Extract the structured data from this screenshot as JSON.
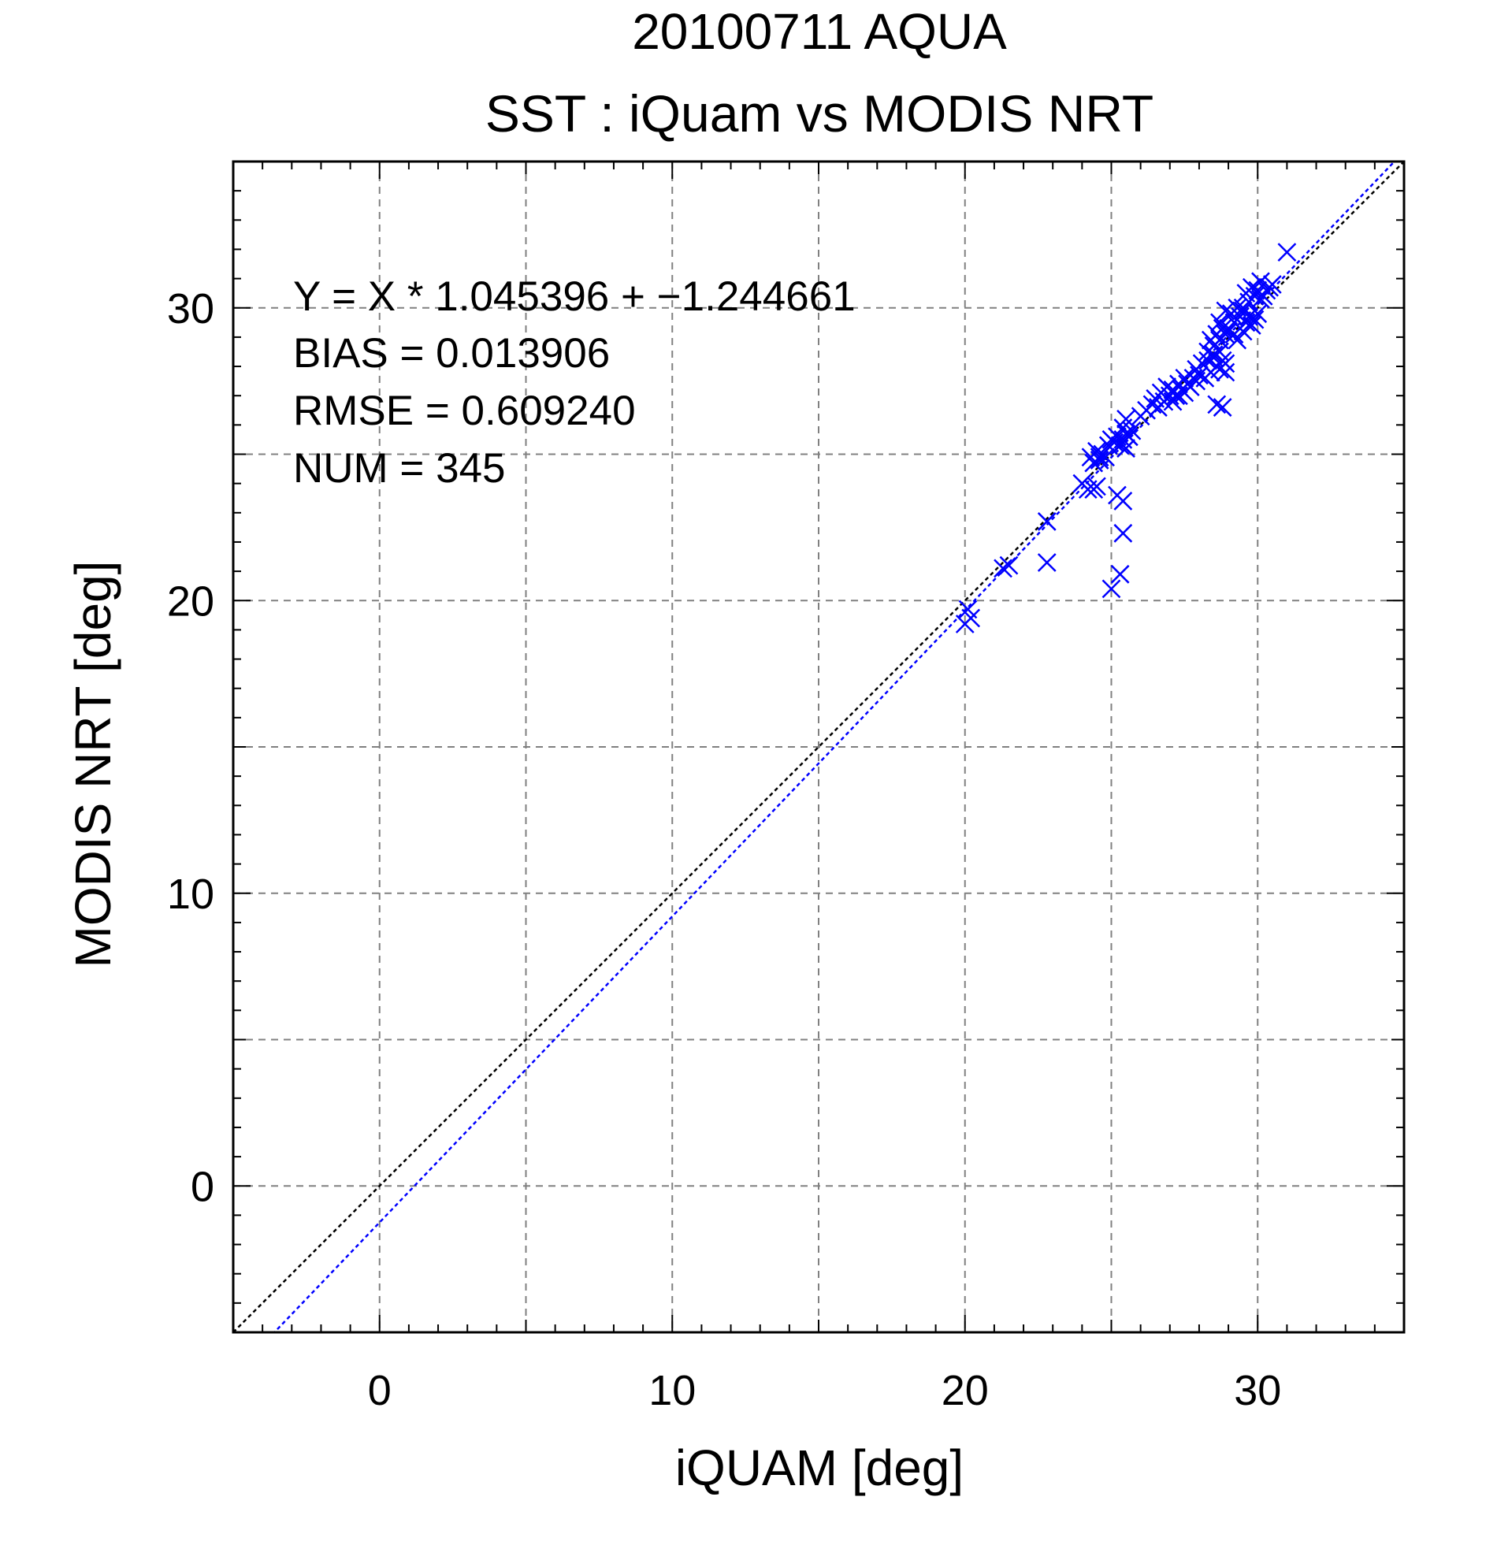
{
  "chart_data": {
    "type": "scatter",
    "header": "20100711 AQUA",
    "title": "SST : iQuam vs MODIS NRT",
    "xlabel": "iQUAM [deg]",
    "ylabel": "MODIS NRT [deg]",
    "xlim": [
      -5,
      35
    ],
    "ylim": [
      -5,
      35
    ],
    "xticks": [
      "0",
      "10",
      "20",
      "30"
    ],
    "yticks": [
      "0",
      "10",
      "20",
      "30"
    ],
    "grid": true,
    "colors": {
      "header": "#8a8a8a",
      "points": "#0000ff",
      "fit_line": "#0000ff",
      "identity_line": "#000000",
      "grid": "#808080"
    },
    "annotations": [
      "Y = X * 1.045396 + −1.244661",
      "BIAS = 0.013906",
      "RMSE = 0.609240",
      "NUM = 345"
    ],
    "fit": {
      "slope": 1.045396,
      "intercept": -1.244661
    },
    "identity": {
      "slope": 1,
      "intercept": 0
    },
    "series": [
      {
        "marker": "x",
        "x": [
          20.0,
          20.1,
          20.2,
          21.3,
          21.5,
          22.8,
          22.8,
          24.0,
          24.2,
          24.4,
          24.5,
          24.3,
          24.5,
          24.6,
          24.7,
          24.8,
          24.4,
          24.6,
          24.9,
          25.0,
          25.1,
          25.2,
          25.3,
          25.4,
          25.5,
          25.6,
          25.2,
          25.4,
          25.0,
          25.3,
          25.4,
          25.5,
          25.6,
          25.7,
          25.4,
          25.5,
          26.0,
          26.2,
          26.4,
          26.6,
          26.8,
          27.0,
          26.5,
          26.7,
          26.9,
          27.1,
          27.3,
          27.5,
          27.2,
          27.4,
          27.6,
          27.8,
          27.1,
          27.3,
          27.5,
          27.7,
          27.9,
          28.0,
          27.9,
          28.1,
          28.3,
          28.5,
          28.2,
          28.4,
          28.6,
          28.8,
          28.3,
          28.5,
          28.7,
          28.9,
          28.4,
          28.6,
          28.8,
          29.0,
          28.5,
          28.7,
          28.9,
          28.6,
          28.8,
          28.7,
          28.9,
          29.0,
          29.2,
          29.4,
          29.1,
          29.3,
          29.5,
          29.7,
          29.2,
          29.4,
          29.6,
          29.8,
          29.5,
          29.7,
          29.9,
          30.1,
          29.6,
          29.8,
          30.0,
          30.2,
          30.3,
          30.5,
          30.1,
          30.4,
          29.9,
          30.0,
          29.3,
          29.5,
          31.0,
          28.7,
          28.9
        ],
        "y": [
          19.2,
          19.7,
          19.4,
          21.1,
          21.2,
          21.3,
          22.7,
          24.0,
          23.8,
          23.8,
          23.9,
          24.9,
          25.1,
          24.8,
          25.0,
          24.9,
          24.7,
          24.9,
          25.3,
          25.5,
          25.4,
          25.6,
          25.3,
          25.5,
          25.7,
          25.6,
          23.6,
          23.4,
          20.4,
          20.9,
          22.3,
          25.2,
          25.6,
          25.8,
          25.9,
          26.2,
          26.3,
          26.5,
          26.7,
          26.6,
          26.8,
          27.0,
          26.9,
          27.1,
          27.3,
          27.2,
          27.4,
          27.6,
          27.0,
          27.2,
          27.4,
          27.6,
          26.8,
          27.0,
          27.1,
          27.3,
          27.5,
          27.7,
          27.9,
          28.1,
          28.2,
          28.4,
          27.6,
          27.8,
          28.0,
          28.2,
          28.5,
          28.7,
          28.9,
          29.1,
          28.9,
          29.1,
          29.3,
          29.2,
          28.3,
          28.5,
          28.1,
          26.7,
          26.6,
          27.9,
          27.8,
          29.3,
          29.5,
          29.7,
          29.8,
          30.0,
          29.9,
          29.7,
          29.1,
          29.3,
          29.5,
          29.4,
          30.0,
          30.2,
          30.4,
          30.3,
          30.5,
          30.7,
          30.6,
          30.4,
          30.6,
          30.8,
          30.9,
          30.7,
          29.6,
          29.8,
          28.9,
          29.2,
          31.9,
          29.5,
          29.9
        ]
      }
    ]
  }
}
